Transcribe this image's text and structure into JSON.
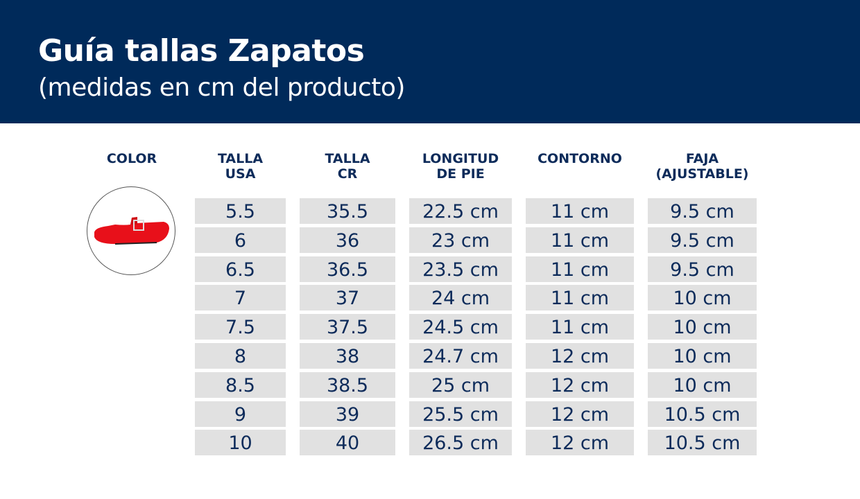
{
  "header": {
    "title": "Guía tallas Zapatos",
    "subtitle": "(medidas en cm del producto)",
    "background": "#002a5a"
  },
  "columns": [
    {
      "line1": "COLOR",
      "line2": ""
    },
    {
      "line1": "TALLA",
      "line2": "USA"
    },
    {
      "line1": "TALLA",
      "line2": "CR"
    },
    {
      "line1": "LONGITUD",
      "line2": "DE PIE"
    },
    {
      "line1": "CONTORNO",
      "line2": ""
    },
    {
      "line1": "FAJA",
      "line2": "(AJUSTABLE)"
    }
  ],
  "product_image": {
    "description_icon": "red-mary-jane-shoe",
    "color": "#e8101a"
  },
  "rows": [
    [
      "5.5",
      "35.5",
      "22.5 cm",
      "11 cm",
      "9.5 cm"
    ],
    [
      "6",
      "36",
      "23 cm",
      "11 cm",
      "9.5 cm"
    ],
    [
      "6.5",
      "36.5",
      "23.5 cm",
      "11 cm",
      "9.5 cm"
    ],
    [
      "7",
      "37",
      "24 cm",
      "11 cm",
      "10 cm"
    ],
    [
      "7.5",
      "37.5",
      "24.5 cm",
      "11 cm",
      "10 cm"
    ],
    [
      "8",
      "38",
      "24.7 cm",
      "12 cm",
      "10 cm"
    ],
    [
      "8.5",
      "38.5",
      "25 cm",
      "12 cm",
      "10 cm"
    ],
    [
      "9",
      "39",
      "25.5 cm",
      "12 cm",
      "10.5 cm"
    ],
    [
      "10",
      "40",
      "26.5 cm",
      "12 cm",
      "10.5 cm"
    ]
  ]
}
